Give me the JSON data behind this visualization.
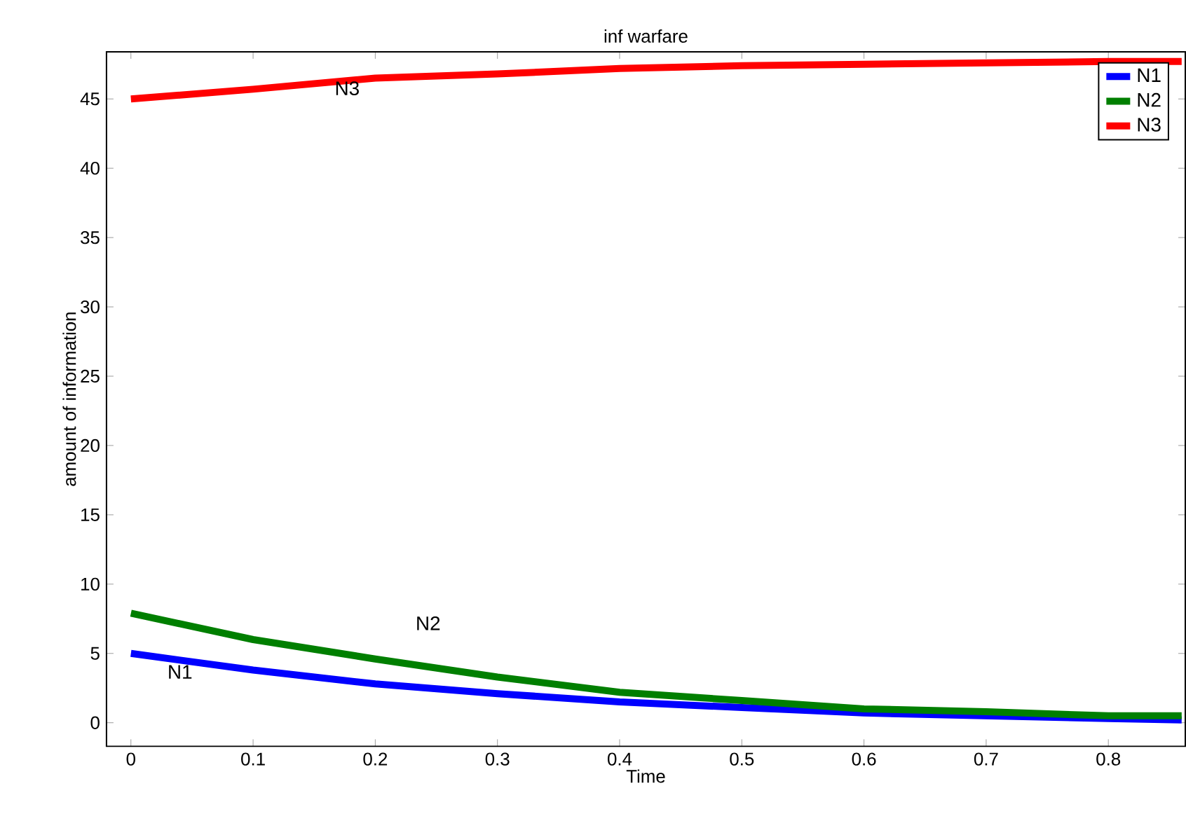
{
  "chart_data": {
    "type": "line",
    "title": "inf warfare",
    "xlabel": "Time",
    "ylabel": "amount of information",
    "x": [
      0,
      0.1,
      0.2,
      0.3,
      0.4,
      0.5,
      0.6,
      0.7,
      0.8,
      0.86
    ],
    "series": [
      {
        "name": "N1",
        "color": "#0000ff",
        "values": [
          5,
          3.8,
          2.8,
          2.1,
          1.5,
          1.1,
          0.7,
          0.5,
          0.3,
          0.2
        ]
      },
      {
        "name": "N2",
        "color": "#007f00",
        "values": [
          7.9,
          6.0,
          4.6,
          3.3,
          2.2,
          1.6,
          1.0,
          0.8,
          0.5,
          0.5
        ]
      },
      {
        "name": "N3",
        "color": "#ff0000",
        "values": [
          45,
          45.7,
          46.5,
          46.8,
          47.2,
          47.4,
          47.5,
          47.6,
          47.7,
          47.7
        ]
      }
    ],
    "annotations": [
      "N3",
      "N2",
      "N1"
    ],
    "xlim": [
      -0.02,
      0.863
    ],
    "ylim": [
      -1.7,
      48.4
    ],
    "xticks": [
      0,
      0.1,
      0.2,
      0.3,
      0.4,
      0.5,
      0.6,
      0.7,
      0.8
    ],
    "yticks": [
      0,
      5,
      10,
      15,
      20,
      25,
      30,
      35,
      40,
      45
    ],
    "legend": "top right",
    "grid": false,
    "line_style": "solid",
    "marker": "none"
  }
}
